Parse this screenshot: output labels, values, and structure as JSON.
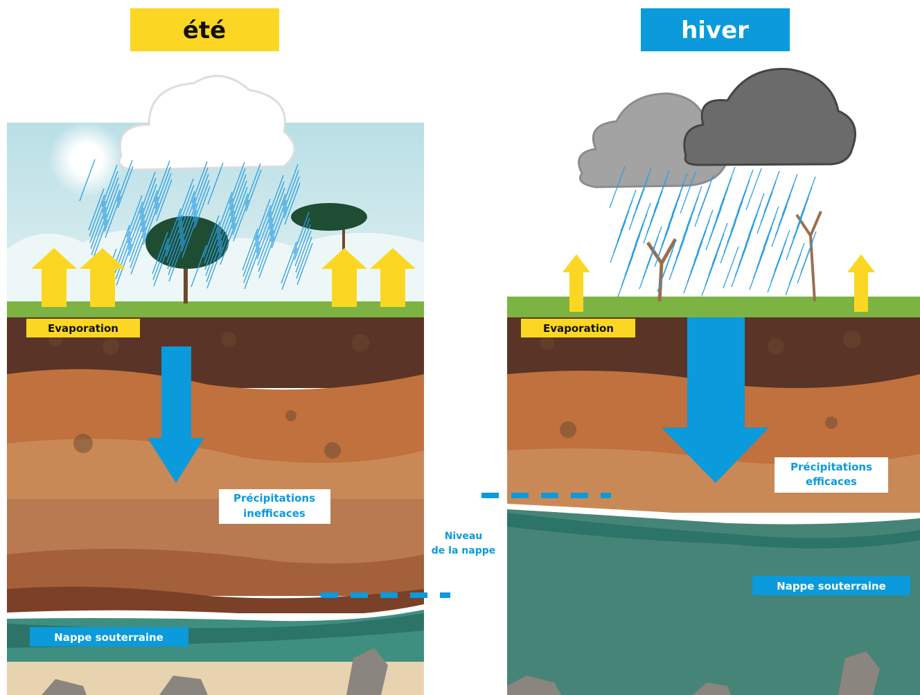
{
  "panels": [
    {
      "title": "été",
      "evaporation": "Evaporation",
      "precipitation": [
        "Précipitations",
        "inefficaces"
      ],
      "aquifer": "Nappe souterraine"
    },
    {
      "title": "hiver",
      "evaporation": "Evaporation",
      "precipitation": [
        "Précipitations",
        "efficaces"
      ],
      "aquifer": "Nappe souterraine"
    }
  ],
  "water_level_label": [
    "Niveau",
    "de la nappe"
  ]
}
